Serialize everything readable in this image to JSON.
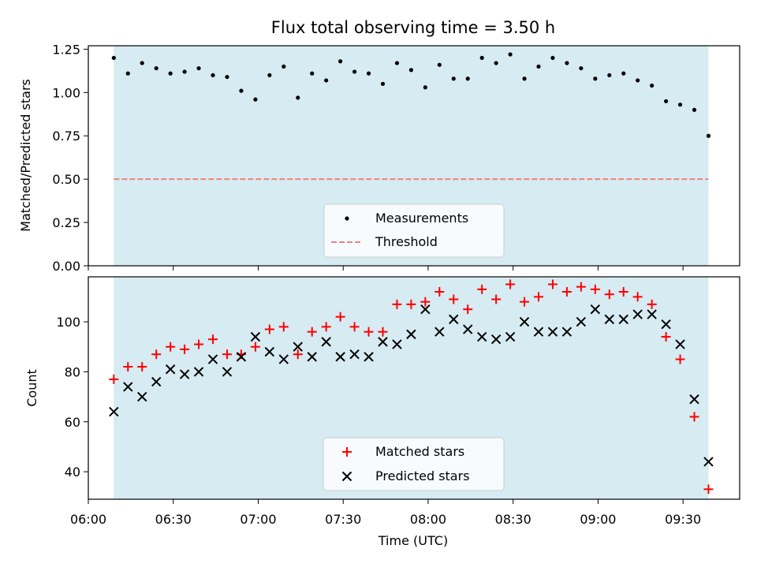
{
  "figure": {
    "title": "Flux total observing time = 3.50 h"
  },
  "colors": {
    "shade": "#add8e6",
    "threshold": "#f08080",
    "measurement": "#000000",
    "matched": "#ff0000",
    "predicted": "#000000"
  },
  "chart_data": [
    {
      "type": "scatter",
      "ylabel": "Matched/Predicted stars",
      "ylim": [
        0,
        1.27
      ],
      "yticks": [
        0,
        0.25,
        0.5,
        0.75,
        1.0,
        1.25
      ],
      "ytick_labels": [
        "0.00",
        "0.25",
        "0.50",
        "0.75",
        "1.00",
        "1.25"
      ],
      "xlim": [
        "06:00",
        "09:50"
      ],
      "observing_window": [
        "06:09",
        "09:39"
      ],
      "threshold": 0.5,
      "grid": false,
      "legend_position": "lower-center",
      "legend": {
        "measurements": "Measurements",
        "threshold": "Threshold"
      },
      "series": [
        {
          "name": "Measurements",
          "x": [
            "06:09",
            "06:14",
            "06:19",
            "06:24",
            "06:29",
            "06:34",
            "06:39",
            "06:44",
            "06:49",
            "06:54",
            "06:59",
            "07:04",
            "07:09",
            "07:14",
            "07:19",
            "07:24",
            "07:29",
            "07:34",
            "07:39",
            "07:44",
            "07:49",
            "07:54",
            "07:59",
            "08:04",
            "08:09",
            "08:14",
            "08:19",
            "08:24",
            "08:29",
            "08:34",
            "08:39",
            "08:44",
            "08:49",
            "08:54",
            "08:59",
            "09:04",
            "09:09",
            "09:14",
            "09:19",
            "09:24",
            "09:29",
            "09:34",
            "09:39"
          ],
          "y": [
            1.2,
            1.11,
            1.17,
            1.14,
            1.11,
            1.12,
            1.14,
            1.1,
            1.09,
            1.01,
            0.96,
            1.1,
            1.15,
            0.97,
            1.11,
            1.07,
            1.18,
            1.12,
            1.11,
            1.05,
            1.17,
            1.13,
            1.03,
            1.16,
            1.08,
            1.08,
            1.2,
            1.17,
            1.22,
            1.08,
            1.15,
            1.2,
            1.17,
            1.14,
            1.08,
            1.1,
            1.11,
            1.07,
            1.04,
            0.95,
            0.93,
            0.9,
            0.75
          ]
        }
      ]
    },
    {
      "type": "scatter",
      "xlabel": "Time (UTC)",
      "ylabel": "Count",
      "ylim": [
        29,
        118
      ],
      "yticks": [
        40,
        60,
        80,
        100
      ],
      "ytick_labels": [
        "40",
        "60",
        "80",
        "100"
      ],
      "xlim": [
        "06:00",
        "09:50"
      ],
      "xticks": [
        "06:00",
        "06:30",
        "07:00",
        "07:30",
        "08:00",
        "08:30",
        "09:00",
        "09:30"
      ],
      "observing_window": [
        "06:09",
        "09:39"
      ],
      "grid": false,
      "legend_position": "lower-center",
      "series": [
        {
          "name": "Matched stars",
          "x": [
            "06:09",
            "06:14",
            "06:19",
            "06:24",
            "06:29",
            "06:34",
            "06:39",
            "06:44",
            "06:49",
            "06:54",
            "06:59",
            "07:04",
            "07:09",
            "07:14",
            "07:19",
            "07:24",
            "07:29",
            "07:34",
            "07:39",
            "07:44",
            "07:49",
            "07:54",
            "07:59",
            "08:04",
            "08:09",
            "08:14",
            "08:19",
            "08:24",
            "08:29",
            "08:34",
            "08:39",
            "08:44",
            "08:49",
            "08:54",
            "08:59",
            "09:04",
            "09:09",
            "09:14",
            "09:19",
            "09:24",
            "09:29",
            "09:34",
            "09:39"
          ],
          "y": [
            77,
            82,
            82,
            87,
            90,
            89,
            91,
            93,
            87,
            87,
            90,
            97,
            98,
            87,
            96,
            98,
            102,
            98,
            96,
            96,
            107,
            107,
            108,
            112,
            109,
            105,
            113,
            109,
            115,
            108,
            110,
            115,
            112,
            114,
            113,
            111,
            112,
            110,
            107,
            94,
            85,
            62,
            33
          ]
        },
        {
          "name": "Predicted stars",
          "x": [
            "06:09",
            "06:14",
            "06:19",
            "06:24",
            "06:29",
            "06:34",
            "06:39",
            "06:44",
            "06:49",
            "06:54",
            "06:59",
            "07:04",
            "07:09",
            "07:14",
            "07:19",
            "07:24",
            "07:29",
            "07:34",
            "07:39",
            "07:44",
            "07:49",
            "07:54",
            "07:59",
            "08:04",
            "08:09",
            "08:14",
            "08:19",
            "08:24",
            "08:29",
            "08:34",
            "08:39",
            "08:44",
            "08:49",
            "08:54",
            "08:59",
            "09:04",
            "09:09",
            "09:14",
            "09:19",
            "09:24",
            "09:29",
            "09:34",
            "09:39"
          ],
          "y": [
            64,
            74,
            70,
            76,
            81,
            79,
            80,
            85,
            80,
            86,
            94,
            88,
            85,
            90,
            86,
            92,
            86,
            87,
            86,
            92,
            91,
            95,
            105,
            96,
            101,
            97,
            94,
            93,
            94,
            100,
            96,
            96,
            96,
            100,
            105,
            101,
            101,
            103,
            103,
            99,
            91,
            69,
            44
          ]
        }
      ]
    }
  ]
}
